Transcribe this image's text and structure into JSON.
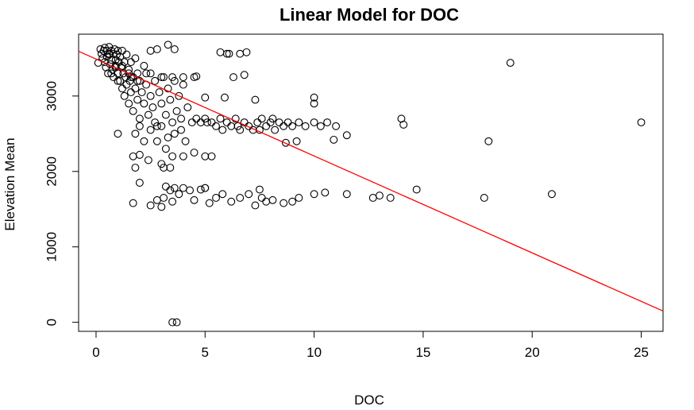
{
  "chart_data": {
    "type": "scatter",
    "title": "Linear Model for DOC",
    "xlabel": "DOC",
    "ylabel": "Elevation Mean",
    "xlim": [
      -0.8,
      26
    ],
    "ylim": [
      -120,
      3820
    ],
    "xticks": [
      0,
      5,
      10,
      15,
      20,
      25
    ],
    "yticks": [
      0,
      1000,
      2000,
      3000
    ],
    "grid": false,
    "legend": "none",
    "point_color": "#000000",
    "line_color": "#ff0000",
    "fit_line": {
      "intercept": 3490,
      "slope": -128.5
    },
    "series": [
      {
        "values": [
          [
            0.1,
            3440
          ],
          [
            0.2,
            3620
          ],
          [
            0.25,
            3560
          ],
          [
            0.3,
            3500
          ],
          [
            0.35,
            3600
          ],
          [
            0.4,
            3450
          ],
          [
            0.4,
            3640
          ],
          [
            0.45,
            3380
          ],
          [
            0.5,
            3600
          ],
          [
            0.5,
            3520
          ],
          [
            0.55,
            3300
          ],
          [
            0.6,
            3560
          ],
          [
            0.6,
            3650
          ],
          [
            0.65,
            3420
          ],
          [
            0.7,
            3480
          ],
          [
            0.7,
            3600
          ],
          [
            0.75,
            3350
          ],
          [
            0.8,
            3560
          ],
          [
            0.8,
            3250
          ],
          [
            0.85,
            3620
          ],
          [
            0.9,
            3480
          ],
          [
            0.9,
            3400
          ],
          [
            0.95,
            3550
          ],
          [
            1.0,
            3300
          ],
          [
            1.0,
            3600
          ],
          [
            1.05,
            3450
          ],
          [
            1.1,
            3200
          ],
          [
            1.1,
            3520
          ],
          [
            1.15,
            3380
          ],
          [
            1.2,
            3600
          ],
          [
            1.2,
            3100
          ],
          [
            1.25,
            3300
          ],
          [
            1.3,
            3450
          ],
          [
            1.3,
            3000
          ],
          [
            1.35,
            3250
          ],
          [
            1.4,
            3550
          ],
          [
            1.4,
            3150
          ],
          [
            1.5,
            3350
          ],
          [
            1.5,
            2900
          ],
          [
            1.55,
            3200
          ],
          [
            1.6,
            3050
          ],
          [
            1.6,
            3450
          ],
          [
            1.7,
            3250
          ],
          [
            1.7,
            2800
          ],
          [
            1.8,
            3100
          ],
          [
            1.8,
            3500
          ],
          [
            1.9,
            2950
          ],
          [
            1.9,
            3300
          ],
          [
            2.0,
            3200
          ],
          [
            2.0,
            2700
          ],
          [
            2.1,
            3050
          ],
          [
            2.2,
            2900
          ],
          [
            2.2,
            3400
          ],
          [
            2.3,
            3150
          ],
          [
            2.4,
            2750
          ],
          [
            2.5,
            3000
          ],
          [
            2.5,
            3300
          ],
          [
            2.6,
            2850
          ],
          [
            2.7,
            3200
          ],
          [
            2.8,
            2600
          ],
          [
            2.9,
            3050
          ],
          [
            3.0,
            2900
          ],
          [
            3.1,
            3250
          ],
          [
            3.2,
            2750
          ],
          [
            3.3,
            3100
          ],
          [
            3.4,
            2950
          ],
          [
            3.5,
            2650
          ],
          [
            3.6,
            3200
          ],
          [
            3.7,
            2800
          ],
          [
            3.8,
            3000
          ],
          [
            3.9,
            2700
          ],
          [
            4.0,
            3150
          ],
          [
            4.2,
            2850
          ],
          [
            4.4,
            2650
          ],
          [
            4.6,
            2700
          ],
          [
            4.8,
            2650
          ],
          [
            5.0,
            2700
          ],
          [
            0.6,
            3550
          ],
          [
            0.9,
            3380
          ],
          [
            1.2,
            3400
          ],
          [
            1.5,
            3300
          ],
          [
            1.0,
            3200
          ],
          [
            0.7,
            3300
          ],
          [
            1.6,
            3250
          ],
          [
            1.9,
            3200
          ],
          [
            2.3,
            3300
          ],
          [
            3.0,
            3250
          ],
          [
            3.5,
            3250
          ],
          [
            4.0,
            3250
          ],
          [
            4.5,
            3250
          ],
          [
            1.0,
            2500
          ],
          [
            1.8,
            2500
          ],
          [
            2.0,
            2600
          ],
          [
            2.2,
            2400
          ],
          [
            2.5,
            2550
          ],
          [
            2.8,
            2400
          ],
          [
            3.0,
            2600
          ],
          [
            3.3,
            2450
          ],
          [
            3.6,
            2500
          ],
          [
            3.9,
            2550
          ],
          [
            4.1,
            2400
          ],
          [
            2.7,
            2650
          ],
          [
            3.2,
            2300
          ],
          [
            1.7,
            2200
          ],
          [
            2.0,
            2220
          ],
          [
            2.4,
            2150
          ],
          [
            3.0,
            2100
          ],
          [
            3.5,
            2200
          ],
          [
            4.0,
            2200
          ],
          [
            4.5,
            2250
          ],
          [
            5.0,
            2200
          ],
          [
            5.3,
            2200
          ],
          [
            3.1,
            2050
          ],
          [
            1.8,
            2050
          ],
          [
            3.4,
            2050
          ],
          [
            5.3,
            2650
          ],
          [
            5.5,
            2600
          ],
          [
            5.7,
            2700
          ],
          [
            5.8,
            2550
          ],
          [
            6.0,
            2650
          ],
          [
            6.2,
            2600
          ],
          [
            6.4,
            2700
          ],
          [
            6.6,
            2550
          ],
          [
            6.8,
            2650
          ],
          [
            7.0,
            2600
          ],
          [
            7.2,
            2550
          ],
          [
            7.4,
            2650
          ],
          [
            7.6,
            2700
          ],
          [
            7.8,
            2600
          ],
          [
            8.0,
            2650
          ],
          [
            8.2,
            2550
          ],
          [
            8.4,
            2650
          ],
          [
            8.6,
            2600
          ],
          [
            8.8,
            2650
          ],
          [
            9.0,
            2600
          ],
          [
            9.3,
            2650
          ],
          [
            9.6,
            2600
          ],
          [
            10.0,
            2650
          ],
          [
            10.3,
            2600
          ],
          [
            10.6,
            2650
          ],
          [
            11.0,
            2600
          ],
          [
            5.1,
            2650
          ],
          [
            6.5,
            2600
          ],
          [
            7.5,
            2550
          ],
          [
            8.1,
            2700
          ],
          [
            8.7,
            2380
          ],
          [
            9.2,
            2400
          ],
          [
            10.9,
            2420
          ],
          [
            11.5,
            2480
          ],
          [
            14.0,
            2700
          ],
          [
            14.1,
            2620
          ],
          [
            18.0,
            2400
          ],
          [
            25.0,
            2650
          ],
          [
            10.0,
            2980
          ],
          [
            10.0,
            2900
          ],
          [
            7.3,
            2950
          ],
          [
            5.0,
            2980
          ],
          [
            5.9,
            2980
          ],
          [
            6.3,
            3250
          ],
          [
            6.8,
            3280
          ],
          [
            5.7,
            3580
          ],
          [
            6.0,
            3560
          ],
          [
            6.1,
            3560
          ],
          [
            6.6,
            3560
          ],
          [
            6.9,
            3580
          ],
          [
            3.3,
            3680
          ],
          [
            4.6,
            3260
          ],
          [
            3.6,
            3620
          ],
          [
            19.0,
            3440
          ],
          [
            2.8,
            3620
          ],
          [
            2.5,
            3600
          ],
          [
            1.7,
            1580
          ],
          [
            2.0,
            1850
          ],
          [
            2.5,
            1550
          ],
          [
            2.8,
            1620
          ],
          [
            3.0,
            1530
          ],
          [
            3.2,
            1800
          ],
          [
            3.4,
            1750
          ],
          [
            3.5,
            1600
          ],
          [
            3.6,
            1780
          ],
          [
            3.8,
            1700
          ],
          [
            4.0,
            1780
          ],
          [
            4.3,
            1750
          ],
          [
            4.5,
            1620
          ],
          [
            5.0,
            1780
          ],
          [
            5.2,
            1580
          ],
          [
            5.5,
            1650
          ],
          [
            5.8,
            1700
          ],
          [
            6.2,
            1600
          ],
          [
            6.6,
            1650
          ],
          [
            7.0,
            1700
          ],
          [
            7.3,
            1550
          ],
          [
            7.6,
            1650
          ],
          [
            7.8,
            1600
          ],
          [
            8.1,
            1620
          ],
          [
            8.6,
            1580
          ],
          [
            9.0,
            1600
          ],
          [
            9.3,
            1650
          ],
          [
            10.0,
            1700
          ],
          [
            10.5,
            1720
          ],
          [
            11.5,
            1700
          ],
          [
            12.7,
            1650
          ],
          [
            13.0,
            1680
          ],
          [
            13.5,
            1650
          ],
          [
            14.7,
            1760
          ],
          [
            17.8,
            1650
          ],
          [
            20.9,
            1700
          ],
          [
            7.5,
            1760
          ],
          [
            5.0,
            1780
          ],
          [
            4.8,
            1760
          ],
          [
            3.1,
            1650
          ],
          [
            3.5,
            0
          ],
          [
            3.7,
            0
          ]
        ]
      }
    ]
  }
}
